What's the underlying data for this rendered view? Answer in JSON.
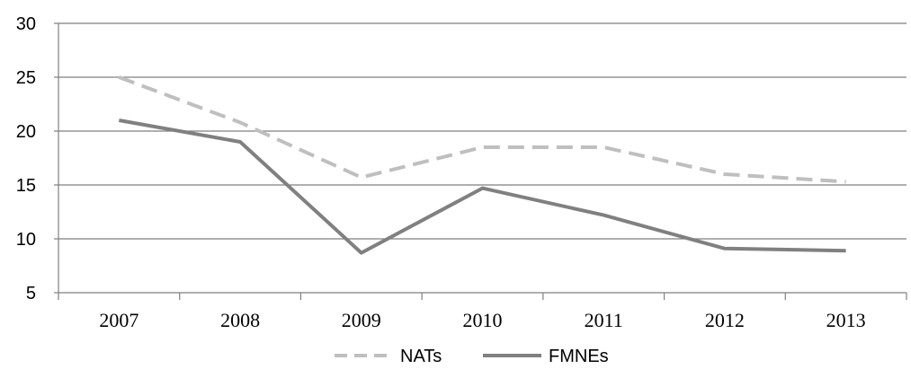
{
  "chart_data": {
    "type": "line",
    "title": "",
    "xlabel": "",
    "ylabel": "",
    "categories": [
      "2007",
      "2008",
      "2009",
      "2010",
      "2011",
      "2012",
      "2013"
    ],
    "ylim": [
      5,
      30
    ],
    "yticks": [
      5,
      10,
      15,
      20,
      25,
      30
    ],
    "grid": "horizontal",
    "legend": "bottom",
    "series": [
      {
        "name": "NATs",
        "values": [
          25,
          20.8,
          15.7,
          18.5,
          18.5,
          16,
          15.3
        ],
        "color": "#bfbfbf",
        "style": "dashed"
      },
      {
        "name": "FMNEs",
        "values": [
          21,
          19,
          8.7,
          14.7,
          12.2,
          9.1,
          8.9
        ],
        "color": "#808080",
        "style": "solid"
      }
    ]
  }
}
